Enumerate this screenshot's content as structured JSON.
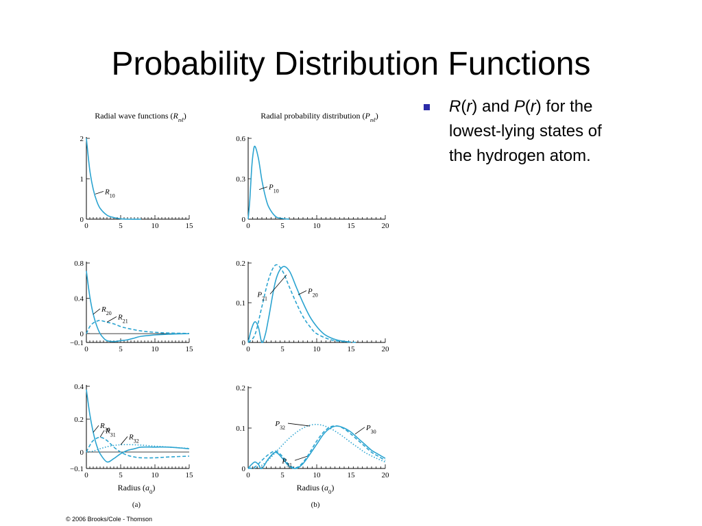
{
  "title": "Probability Distribution Functions",
  "bullet": {
    "R": "R",
    "r1": "r",
    "and": "and",
    "P": "P",
    "r2": "r",
    "tail1": "for the",
    "line2": "lowest-lying states of",
    "line3": "the hydrogen atom.",
    "bullet_color": "#2b2ba8"
  },
  "copyright": "© 2006 Brooks/Cole - Thomson",
  "colors": {
    "curve": "#2aa3d0",
    "axis": "#000000"
  },
  "chart_data": [
    {
      "type": "line",
      "panel": "a1",
      "header": {
        "main": "Radial wave functions (",
        "sym": "R",
        "sub": "nℓ",
        "tail": ")"
      },
      "xlim": [
        0,
        15
      ],
      "ylim": [
        0,
        2
      ],
      "xticks": [
        "0",
        "5",
        "10",
        "15"
      ],
      "yticks": [
        "0",
        "1",
        "2"
      ],
      "series": [
        {
          "name": "R",
          "sub": "10",
          "style": "solid",
          "x": [
            0,
            0.5,
            1,
            1.5,
            2,
            3,
            4,
            5,
            6,
            8
          ],
          "y": [
            2,
            1.21,
            0.74,
            0.45,
            0.27,
            0.1,
            0.04,
            0.01,
            0,
            0
          ]
        }
      ]
    },
    {
      "type": "line",
      "panel": "b1",
      "header": {
        "main": "Radial probability distribution (",
        "sym": "P",
        "sub": "nℓ",
        "tail": ")"
      },
      "xlim": [
        0,
        20
      ],
      "ylim": [
        0,
        0.6
      ],
      "xticks": [
        "0",
        "5",
        "10",
        "15",
        "20"
      ],
      "yticks": [
        "0",
        "0.3",
        "0.6"
      ],
      "series": [
        {
          "name": "P",
          "sub": "10",
          "style": "solid",
          "x": [
            0,
            0.25,
            0.5,
            0.75,
            1,
            1.5,
            2,
            2.5,
            3,
            4,
            5,
            6
          ],
          "y": [
            0,
            0.15,
            0.37,
            0.5,
            0.54,
            0.45,
            0.29,
            0.17,
            0.09,
            0.02,
            0.005,
            0
          ]
        }
      ]
    },
    {
      "type": "line",
      "panel": "a2",
      "xlim": [
        0,
        15
      ],
      "ylim": [
        -0.1,
        0.8
      ],
      "xticks": [
        "0",
        "5",
        "10",
        "15"
      ],
      "yticks": [
        "−0.1",
        "0",
        "0.4",
        "0.8"
      ],
      "series": [
        {
          "name": "R",
          "sub": "20",
          "style": "solid",
          "x": [
            0,
            0.5,
            1,
            1.5,
            2,
            2.5,
            3,
            4,
            5,
            6,
            7,
            8,
            10,
            12,
            15
          ],
          "y": [
            0.71,
            0.42,
            0.22,
            0.09,
            0,
            -0.05,
            -0.08,
            -0.09,
            -0.08,
            -0.07,
            -0.05,
            -0.03,
            -0.015,
            -0.006,
            -0.001
          ]
        },
        {
          "name": "R",
          "sub": "21",
          "style": "dashed",
          "x": [
            0,
            0.5,
            1,
            1.5,
            2,
            3,
            4,
            5,
            6,
            8,
            10,
            12,
            15
          ],
          "y": [
            0,
            0.08,
            0.12,
            0.14,
            0.15,
            0.13,
            0.11,
            0.08,
            0.06,
            0.03,
            0.015,
            0.007,
            0.002
          ]
        }
      ]
    },
    {
      "type": "line",
      "panel": "b2",
      "xlim": [
        0,
        20
      ],
      "ylim": [
        0,
        0.2
      ],
      "xticks": [
        "0",
        "5",
        "10",
        "15",
        "20"
      ],
      "yticks": [
        "0",
        "0.1",
        "0.2"
      ],
      "series": [
        {
          "name": "P",
          "sub": "20",
          "style": "solid",
          "x": [
            0,
            0.5,
            1,
            1.5,
            2,
            2.5,
            3,
            4,
            5,
            6,
            7,
            8,
            9,
            10,
            11,
            12,
            13,
            14,
            15
          ],
          "y": [
            0,
            0.035,
            0.052,
            0.038,
            0,
            0.02,
            0.063,
            0.155,
            0.19,
            0.18,
            0.14,
            0.1,
            0.065,
            0.04,
            0.022,
            0.012,
            0.006,
            0.003,
            0.001
          ]
        },
        {
          "name": "P",
          "sub": "21",
          "style": "dashed",
          "x": [
            0,
            1,
            2,
            3,
            4,
            5,
            6,
            7,
            8,
            9,
            10,
            12,
            14,
            16
          ],
          "y": [
            0,
            0.02,
            0.09,
            0.16,
            0.195,
            0.18,
            0.14,
            0.1,
            0.065,
            0.04,
            0.022,
            0.007,
            0.002,
            0
          ]
        }
      ]
    },
    {
      "type": "line",
      "panel": "a3",
      "xlim": [
        0,
        15
      ],
      "ylim": [
        -0.1,
        0.4
      ],
      "xticks": [
        "0",
        "5",
        "10",
        "15"
      ],
      "yticks": [
        "−0.1",
        "0",
        "0.2",
        "0.4"
      ],
      "xlabel": {
        "main": "Radius (",
        "sym": "a",
        "sub": "0",
        "tail": ")"
      },
      "caption": "(a)",
      "series": [
        {
          "name": "R",
          "sub": "30",
          "style": "solid",
          "x": [
            0,
            0.5,
            1,
            1.5,
            2,
            3,
            4,
            5,
            6,
            7,
            8,
            10,
            12,
            15
          ],
          "y": [
            0.38,
            0.23,
            0.12,
            0.04,
            -0.01,
            -0.06,
            -0.04,
            -0.01,
            0.01,
            0.02,
            0.03,
            0.03,
            0.03,
            0.02
          ]
        },
        {
          "name": "R",
          "sub": "31",
          "style": "dashed",
          "x": [
            0,
            0.5,
            1,
            2,
            3,
            4,
            5,
            6,
            7,
            8,
            10,
            12,
            15
          ],
          "y": [
            0,
            0.04,
            0.07,
            0.09,
            0.07,
            0.03,
            0,
            -0.02,
            -0.03,
            -0.035,
            -0.035,
            -0.03,
            -0.025
          ]
        },
        {
          "name": "R",
          "sub": "32",
          "style": "dotted",
          "x": [
            0,
            1,
            2,
            3,
            4,
            5,
            6,
            7,
            8,
            10,
            12,
            15
          ],
          "y": [
            0,
            0.006,
            0.02,
            0.032,
            0.04,
            0.044,
            0.045,
            0.044,
            0.042,
            0.036,
            0.03,
            0.022
          ]
        }
      ]
    },
    {
      "type": "line",
      "panel": "b3",
      "xlim": [
        0,
        20
      ],
      "ylim": [
        0,
        0.2
      ],
      "xticks": [
        "0",
        "5",
        "10",
        "15",
        "20"
      ],
      "yticks": [
        "0",
        "0.1",
        "0.2"
      ],
      "xlabel": {
        "main": "Radius (",
        "sym": "a",
        "sub": "0",
        "tail": ")"
      },
      "caption": "(b)",
      "series": [
        {
          "name": "P",
          "sub": "30",
          "style": "solid",
          "x": [
            0,
            0.5,
            1,
            1.5,
            2,
            3,
            4,
            5,
            6,
            7,
            8,
            9,
            10,
            11,
            12,
            13,
            14,
            15,
            16,
            17,
            18,
            19,
            20
          ],
          "y": [
            0,
            0.01,
            0.016,
            0.01,
            0,
            0.025,
            0.04,
            0.025,
            0.005,
            0,
            0.012,
            0.035,
            0.06,
            0.085,
            0.1,
            0.105,
            0.1,
            0.09,
            0.075,
            0.06,
            0.045,
            0.035,
            0.025
          ]
        },
        {
          "name": "P",
          "sub": "31",
          "style": "dashed",
          "x": [
            0,
            1,
            2,
            3,
            4,
            5,
            6,
            7,
            8,
            9,
            10,
            11,
            12,
            13,
            14,
            15,
            16,
            17,
            18,
            19,
            20
          ],
          "y": [
            0,
            0.004,
            0.02,
            0.035,
            0.043,
            0.03,
            0.008,
            0.002,
            0.015,
            0.04,
            0.068,
            0.09,
            0.103,
            0.105,
            0.098,
            0.085,
            0.07,
            0.055,
            0.04,
            0.03,
            0.02
          ]
        },
        {
          "name": "P",
          "sub": "32",
          "style": "dotted",
          "x": [
            0,
            1,
            2,
            3,
            4,
            5,
            6,
            7,
            8,
            9,
            10,
            11,
            12,
            13,
            14,
            15,
            16,
            17,
            18,
            19,
            20
          ],
          "y": [
            0,
            0.001,
            0.008,
            0.022,
            0.04,
            0.058,
            0.075,
            0.089,
            0.1,
            0.107,
            0.109,
            0.106,
            0.099,
            0.089,
            0.077,
            0.064,
            0.052,
            0.04,
            0.031,
            0.023,
            0.016
          ]
        }
      ]
    }
  ]
}
